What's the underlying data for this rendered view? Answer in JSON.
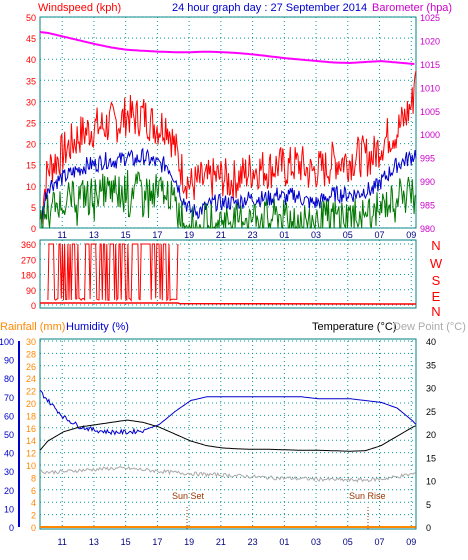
{
  "chart_data": [
    {
      "type": "line",
      "title": "24 hour graph day : 27 September 2014",
      "left_axis_label": "Windspeed (kph)",
      "right_axis_label": "Barometer (hpa)",
      "x_tick_labels": [
        "11",
        "13",
        "15",
        "17",
        "19",
        "21",
        "23",
        "01",
        "03",
        "05",
        "07",
        "09"
      ],
      "left_ticks": [
        "0",
        "5",
        "10",
        "15",
        "20",
        "25",
        "30",
        "35",
        "40",
        "45",
        "50"
      ],
      "right_ticks": [
        "980",
        "985",
        "990",
        "995",
        "1000",
        "1005",
        "1010",
        "1015",
        "1020",
        "1025"
      ],
      "ylim_left": [
        0,
        50
      ],
      "ylim_right": [
        980,
        1025
      ],
      "grid": true,
      "series": [
        {
          "key": "gust",
          "color": "#ff0000",
          "axis": "left",
          "x": [
            9.5,
            10,
            10.5,
            11,
            11.5,
            12,
            12.5,
            13,
            13.5,
            14,
            14.5,
            15,
            15.5,
            16,
            16.5,
            17,
            17.5,
            18,
            18.5,
            19,
            19.5,
            20,
            20.5,
            21,
            21.5,
            22,
            22.5,
            23,
            23.5,
            24,
            24.5,
            25,
            25.5,
            26,
            26.5,
            27,
            27.5,
            28,
            28.5,
            29,
            29.5,
            30,
            30.5,
            31,
            31.5,
            32,
            32.5,
            33,
            33.2
          ],
          "values": [
            2,
            14,
            16,
            18,
            20,
            22,
            23,
            24,
            24,
            25,
            25,
            27,
            26,
            27,
            25,
            24,
            25,
            19,
            13,
            10,
            11,
            11,
            12,
            12,
            11,
            12,
            13,
            14,
            14,
            14,
            15,
            14,
            15,
            15,
            13,
            14,
            14,
            16,
            16,
            16,
            17,
            17,
            17,
            20,
            22,
            23,
            26,
            30,
            40
          ]
        },
        {
          "key": "average",
          "color": "#0000cc",
          "axis": "left",
          "x": [
            9.5,
            10,
            10.5,
            11,
            11.5,
            12,
            12.5,
            13,
            13.5,
            14,
            14.5,
            15,
            15.5,
            16,
            16.5,
            17,
            17.5,
            18,
            18.5,
            19,
            19.5,
            20,
            20.5,
            21,
            21.5,
            22,
            22.5,
            23,
            23.5,
            24,
            24.5,
            25,
            25.5,
            26,
            26.5,
            27,
            27.5,
            28,
            28.5,
            29,
            29.5,
            30,
            30.5,
            31,
            31.5,
            32,
            32.5,
            33,
            33.2
          ],
          "values": [
            1,
            10,
            11,
            12,
            13,
            14,
            15,
            15,
            16,
            16,
            16,
            17,
            16,
            17,
            16,
            15,
            15,
            12,
            7,
            4,
            4,
            5,
            6,
            6,
            6,
            6,
            7,
            7,
            7,
            7,
            8,
            7,
            8,
            7,
            6,
            6,
            7,
            8,
            8,
            8,
            8,
            9,
            9,
            11,
            13,
            15,
            16,
            17,
            18
          ]
        },
        {
          "key": "lull",
          "color": "#007700",
          "axis": "left",
          "x": [
            9.5,
            10,
            10.5,
            11,
            11.5,
            12,
            12.5,
            13,
            13.5,
            14,
            14.5,
            15,
            15.5,
            16,
            16.5,
            17,
            17.5,
            18,
            18.5,
            19,
            19.5,
            20,
            20.5,
            21,
            21.5,
            22,
            22.5,
            23,
            23.5,
            24,
            24.5,
            25,
            25.5,
            26,
            26.5,
            27,
            27.5,
            28,
            28.5,
            29,
            29.5,
            30,
            30.5,
            31,
            31.5,
            32,
            32.5,
            33,
            33.2
          ],
          "values": [
            0,
            5,
            6,
            7,
            7,
            8,
            8,
            9,
            9,
            9,
            9,
            10,
            9,
            10,
            9,
            9,
            9,
            6,
            3,
            1,
            1,
            2,
            2,
            2,
            2,
            2,
            3,
            3,
            3,
            3,
            3,
            3,
            3,
            3,
            2,
            2,
            3,
            3,
            3,
            3,
            4,
            4,
            4,
            5,
            6,
            8,
            9,
            10,
            10
          ]
        },
        {
          "key": "barometer",
          "color": "#ff00ff",
          "axis": "right",
          "x": [
            9.5,
            10,
            11,
            12,
            13,
            14,
            15,
            16,
            17,
            18,
            19,
            20,
            21,
            22,
            23,
            24,
            25,
            26,
            27,
            28,
            29,
            30,
            31,
            32,
            33,
            33.2
          ],
          "values": [
            1021.8,
            1021.6,
            1020.8,
            1020,
            1019.2,
            1018.5,
            1018,
            1017.8,
            1017.6,
            1017.5,
            1017.5,
            1017.6,
            1017.5,
            1017.3,
            1017,
            1016.6,
            1016.2,
            1015.9,
            1015.6,
            1015.3,
            1015.2,
            1015.4,
            1015.6,
            1015.3,
            1015,
            1015
          ]
        }
      ]
    },
    {
      "type": "line",
      "title": "",
      "right_axis_label": "N W S E N",
      "right_letters": [
        "N",
        "W",
        "S",
        "E",
        "N"
      ],
      "left_ticks": [
        "0",
        "90",
        "180",
        "270",
        "360"
      ],
      "ylim": [
        0,
        360
      ],
      "grid": true,
      "series": [
        {
          "key": "direction",
          "color": "#ff0000",
          "x": [
            9.5,
            18.2,
            18.3,
            33.2
          ],
          "values": [
            12,
            12,
            8,
            6
          ]
        }
      ],
      "direction_spikes": {
        "x_start": 10,
        "x_end": 18.2,
        "high": 360,
        "low": 10
      }
    },
    {
      "type": "line",
      "title": "",
      "left_axis_label": "Rainfall (mm)",
      "humidity_label": "Humidity (%)",
      "temperature_label": "Temperature (°C)",
      "dewpoint_label": "Dew Point (°C)",
      "x_tick_labels": [
        "11",
        "13",
        "15",
        "17",
        "19",
        "21",
        "23",
        "01",
        "03",
        "05",
        "07",
        "09"
      ],
      "humidity_ticks": [
        "0",
        "10",
        "20",
        "30",
        "40",
        "50",
        "60",
        "70",
        "80",
        "90",
        "100"
      ],
      "rain_ticks": [
        "0",
        "2",
        "4",
        "6",
        "8",
        "10",
        "12",
        "14",
        "16",
        "18",
        "20",
        "22",
        "24",
        "26",
        "28",
        "30"
      ],
      "temp_ticks": [
        "0",
        "5",
        "10",
        "15",
        "20",
        "25",
        "30",
        "35",
        "40"
      ],
      "ylim_humidity": [
        0,
        100
      ],
      "ylim_temperature": [
        0,
        40
      ],
      "grid": true,
      "annotations": [
        {
          "label": "Sun Set",
          "x": 18.5
        },
        {
          "label": "Sun Rise",
          "x": 31.6
        }
      ],
      "series": [
        {
          "key": "humidity",
          "color": "#0000cc",
          "axis": "humidity",
          "x": [
            9.5,
            10,
            11,
            12,
            13,
            14,
            15,
            16,
            17,
            18,
            19,
            20,
            21,
            22,
            23,
            24,
            25,
            26,
            27,
            28,
            29,
            30,
            31,
            32,
            33,
            33.2
          ],
          "values": [
            73,
            68,
            59,
            54,
            52,
            51,
            51,
            52,
            55,
            62,
            68,
            70,
            70,
            70,
            70,
            70,
            70,
            70,
            69,
            69,
            69,
            68,
            67,
            64,
            57,
            55
          ]
        },
        {
          "key": "temperature",
          "color": "#000000",
          "axis": "temperature",
          "x": [
            9.5,
            10,
            11,
            12,
            13,
            14,
            15,
            16,
            17,
            18,
            19,
            20,
            21,
            22,
            23,
            24,
            25,
            26,
            27,
            28,
            29,
            30,
            31,
            32,
            33,
            33.2
          ],
          "values": [
            16.5,
            18.5,
            20.5,
            21.5,
            22,
            22.5,
            23,
            22.5,
            21.5,
            20,
            18.5,
            17.5,
            17,
            16.8,
            16.7,
            16.7,
            16.6,
            16.5,
            16.5,
            16.4,
            16.3,
            16.4,
            17.5,
            19.5,
            21.5,
            21.8
          ]
        },
        {
          "key": "dewpoint",
          "color": "#aaaaaa",
          "axis": "temperature",
          "x": [
            9.5,
            10,
            11,
            12,
            13,
            14,
            15,
            16,
            17,
            18,
            19,
            20,
            21,
            22,
            23,
            24,
            25,
            26,
            27,
            28,
            29,
            30,
            31,
            32,
            33,
            33.2
          ],
          "values": [
            12,
            11.8,
            11.9,
            12.2,
            12.4,
            12.6,
            12.6,
            12.3,
            12,
            11.7,
            11.5,
            11.3,
            11.2,
            11,
            10.8,
            10.6,
            10.5,
            10.4,
            10.3,
            10.2,
            10.1,
            10.1,
            10.3,
            10.8,
            11.4,
            11.6
          ]
        },
        {
          "key": "rainfall",
          "color": "#ff8800",
          "axis": "rain",
          "x": [
            9.5,
            33.2
          ],
          "values": [
            0,
            0
          ]
        }
      ]
    }
  ]
}
